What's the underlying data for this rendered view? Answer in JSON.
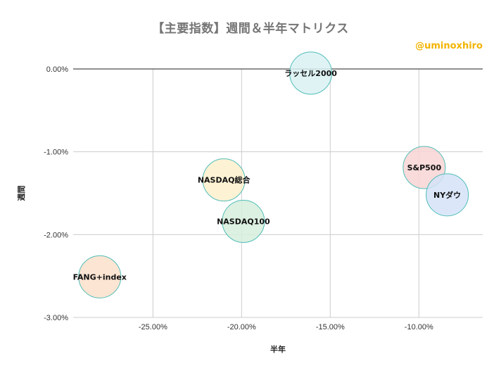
{
  "chart_data": {
    "type": "scatter",
    "title": "【主要指数】週間＆半年マトリクス",
    "watermark": "@uminoxhiro",
    "xlabel": "半年",
    "ylabel": "週間",
    "xlim": [
      -0.295,
      -0.064
    ],
    "ylim": [
      -0.03,
      0.0
    ],
    "x_ticks": [
      {
        "value": -0.25,
        "label": "-25.00%"
      },
      {
        "value": -0.2,
        "label": "-20.00%"
      },
      {
        "value": -0.15,
        "label": "-15.00%"
      },
      {
        "value": -0.1,
        "label": "-10.00%"
      }
    ],
    "y_ticks": [
      {
        "value": 0.0,
        "label": "0.00%"
      },
      {
        "value": -0.01,
        "label": "-1.00%"
      },
      {
        "value": -0.02,
        "label": "-2.00%"
      },
      {
        "value": -0.03,
        "label": "-3.00%"
      }
    ],
    "grid": true,
    "points": [
      {
        "name": "ラッセル2000",
        "x": -0.161,
        "y": -0.0005,
        "color": "#d9f1f3"
      },
      {
        "name": "S&P500",
        "x": -0.097,
        "y": -0.0119,
        "color": "#f8d5d5"
      },
      {
        "name": "NYダウ",
        "x": -0.084,
        "y": -0.0152,
        "color": "#d5e3f8"
      },
      {
        "name": "NASDAQ総合",
        "x": -0.21,
        "y": -0.0134,
        "color": "#fdf0cc"
      },
      {
        "name": "NASDAQ100",
        "x": -0.199,
        "y": -0.0184,
        "color": "#d6eedc"
      },
      {
        "name": "FANG+index",
        "x": -0.28,
        "y": -0.0251,
        "color": "#fde0cb"
      }
    ]
  }
}
